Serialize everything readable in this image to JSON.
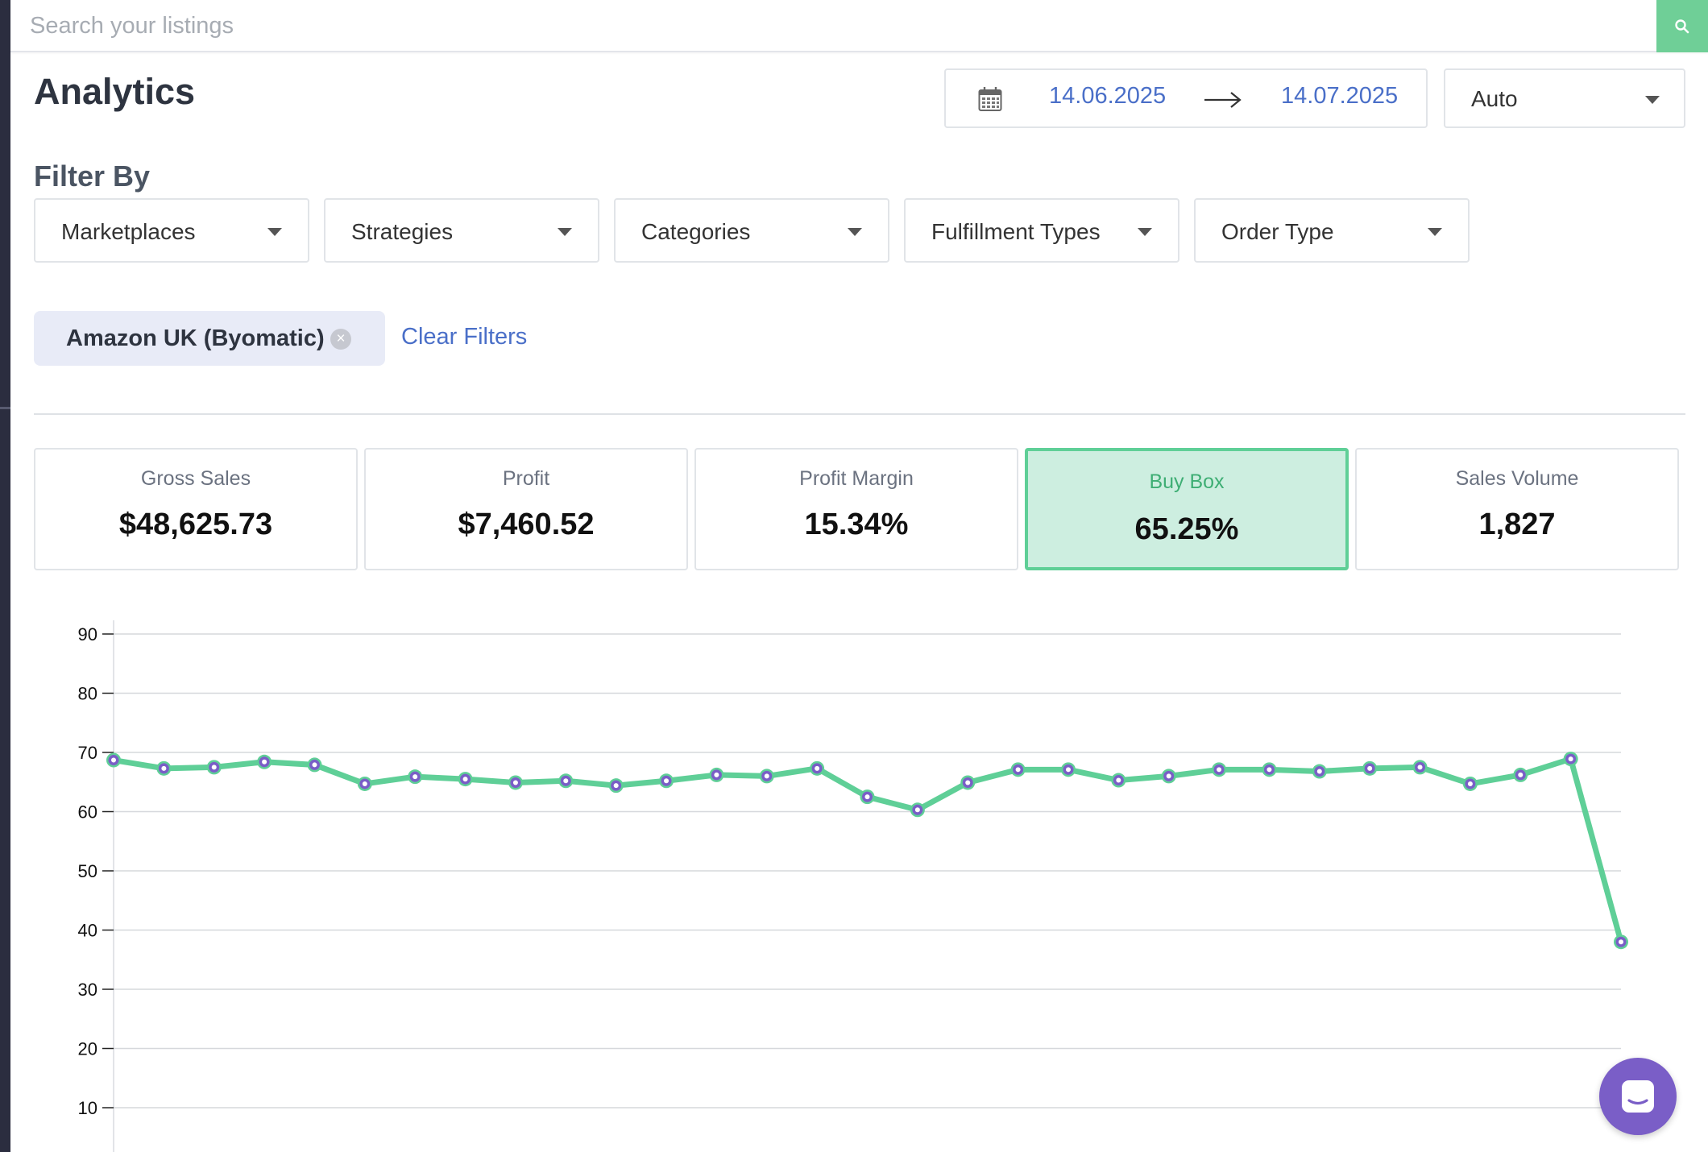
{
  "search": {
    "placeholder": "Search your listings",
    "icon": "search-icon"
  },
  "header": {
    "title": "Analytics"
  },
  "date_range": {
    "start": "14.06.2025",
    "end": "14.07.2025",
    "icon": "calendar-icon"
  },
  "granularity": {
    "selected": "Auto"
  },
  "filters": {
    "title": "Filter By",
    "dropdowns": [
      "Marketplaces",
      "Strategies",
      "Categories",
      "Fulfillment Types",
      "Order Type"
    ]
  },
  "active_filters": {
    "chips": [
      {
        "label": "Amazon UK (Byomatic)"
      }
    ],
    "clear_label": "Clear Filters"
  },
  "metrics": [
    {
      "label": "Gross Sales",
      "value": "$48,625.73",
      "active": false
    },
    {
      "label": "Profit",
      "value": "$7,460.52",
      "active": false
    },
    {
      "label": "Profit Margin",
      "value": "15.34%",
      "active": false
    },
    {
      "label": "Buy Box",
      "value": "65.25%",
      "active": true
    },
    {
      "label": "Sales Volume",
      "value": "1,827",
      "active": false
    }
  ],
  "colors": {
    "accent": "#6fcf97",
    "active_card_bg": "#cdeee0",
    "link": "#4a6fc8",
    "line": "#5fcf97",
    "point": "#7a5ec7",
    "chat": "#7a5ec7"
  },
  "chart_data": {
    "type": "line",
    "series": [
      {
        "values": [
          68.7,
          67.3,
          67.5,
          68.4,
          67.9,
          64.7,
          65.9,
          65.5,
          64.9,
          65.2,
          64.4,
          65.2,
          66.2,
          66.0,
          67.3,
          62.5,
          60.3,
          64.9,
          67.1,
          67.1,
          65.3,
          66.0,
          67.1,
          67.1,
          66.8,
          67.3,
          67.5,
          64.7,
          66.2,
          68.9,
          38.0
        ]
      }
    ],
    "yticks": [
      10,
      20,
      30,
      40,
      50,
      60,
      70,
      80,
      90
    ],
    "ylim": [
      0,
      90
    ],
    "grid": true,
    "xlabel": "",
    "ylabel": ""
  },
  "chat": {
    "icon": "chat-icon"
  }
}
